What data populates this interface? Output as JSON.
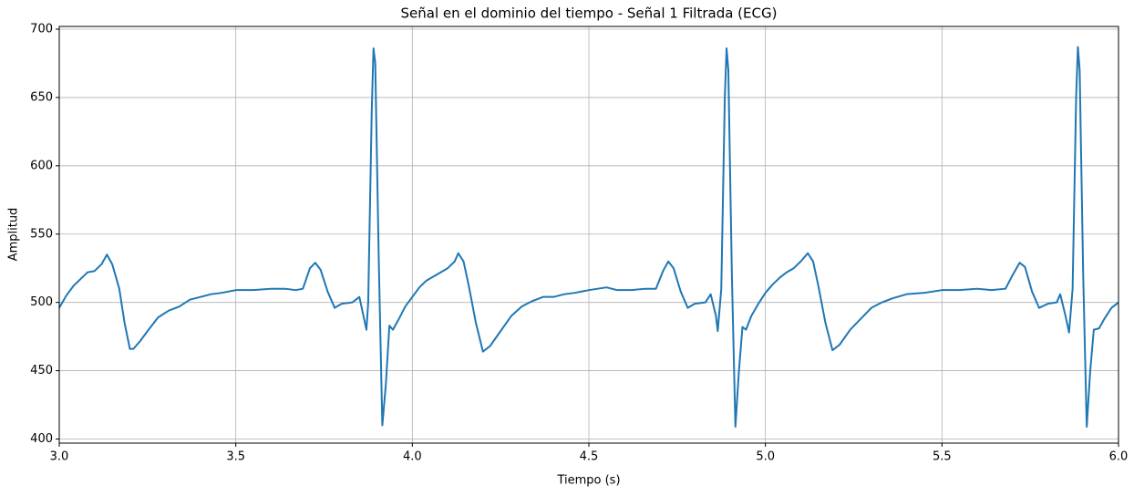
{
  "chart_data": {
    "type": "line",
    "title": "Señal en el dominio del tiempo - Señal 1 Filtrada (ECG)",
    "xlabel": "Tiempo (s)",
    "ylabel": "Amplitud",
    "xlim": [
      3,
      6
    ],
    "ylim": [
      397,
      702
    ],
    "xticks": [
      {
        "value": 3,
        "label": "3.0"
      },
      3.5,
      {
        "value": 4,
        "label": "4.0"
      },
      4.5,
      {
        "value": 5,
        "label": "5.0"
      },
      5.5,
      {
        "value": 6,
        "label": "6.0"
      }
    ],
    "yticks": [
      400,
      450,
      500,
      550,
      600,
      650,
      700
    ],
    "grid": true,
    "x": [
      3.0,
      3.02,
      3.04,
      3.06,
      3.08,
      3.1,
      3.12,
      3.135,
      3.15,
      3.17,
      3.185,
      3.2,
      3.21,
      3.23,
      3.25,
      3.28,
      3.31,
      3.34,
      3.37,
      3.4,
      3.43,
      3.46,
      3.5,
      3.55,
      3.6,
      3.64,
      3.67,
      3.69,
      3.71,
      3.725,
      3.74,
      3.76,
      3.78,
      3.8,
      3.83,
      3.85,
      3.86,
      3.87,
      3.875,
      3.885,
      3.89,
      3.895,
      3.905,
      3.915,
      3.925,
      3.935,
      3.945,
      3.96,
      3.98,
      4.0,
      4.02,
      4.04,
      4.06,
      4.08,
      4.1,
      4.12,
      4.13,
      4.145,
      4.16,
      4.18,
      4.2,
      4.22,
      4.25,
      4.28,
      4.31,
      4.34,
      4.37,
      4.4,
      4.43,
      4.46,
      4.5,
      4.55,
      4.58,
      4.62,
      4.66,
      4.69,
      4.71,
      4.725,
      4.74,
      4.76,
      4.78,
      4.8,
      4.83,
      4.845,
      4.86,
      4.865,
      4.875,
      4.885,
      4.89,
      4.895,
      4.905,
      4.915,
      4.925,
      4.935,
      4.945,
      4.96,
      4.98,
      5.0,
      5.02,
      5.04,
      5.06,
      5.08,
      5.1,
      5.12,
      5.135,
      5.15,
      5.17,
      5.19,
      5.21,
      5.24,
      5.27,
      5.3,
      5.33,
      5.36,
      5.4,
      5.45,
      5.5,
      5.55,
      5.6,
      5.64,
      5.68,
      5.7,
      5.72,
      5.735,
      5.755,
      5.775,
      5.8,
      5.825,
      5.835,
      5.85,
      5.86,
      5.87,
      5.88,
      5.885,
      5.89,
      5.9,
      5.91,
      5.92,
      5.93,
      5.945,
      5.96,
      5.98,
      6.0
    ],
    "series": [
      {
        "color": "#1f77b4",
        "values": [
          496,
          505,
          512,
          517,
          522,
          523,
          528,
          535,
          528,
          510,
          485,
          466,
          466,
          472,
          479,
          489,
          494,
          497,
          502,
          504,
          506,
          507,
          509,
          509,
          510,
          510,
          509,
          510,
          525,
          529,
          524,
          508,
          496,
          499,
          500,
          504,
          492,
          480,
          500,
          640,
          686,
          675,
          530,
          410,
          440,
          483,
          480,
          487,
          497,
          504,
          511,
          516,
          519,
          522,
          525,
          530,
          536,
          530,
          512,
          485,
          464,
          468,
          479,
          490,
          497,
          501,
          504,
          504,
          506,
          507,
          509,
          511,
          509,
          509,
          510,
          510,
          523,
          530,
          525,
          508,
          496,
          499,
          500,
          506,
          490,
          479,
          510,
          650,
          686,
          670,
          520,
          409,
          450,
          482,
          480,
          490,
          499,
          507,
          513,
          518,
          522,
          525,
          530,
          536,
          530,
          512,
          485,
          465,
          469,
          480,
          488,
          496,
          500,
          503,
          506,
          507,
          509,
          509,
          510,
          509,
          510,
          520,
          529,
          526,
          508,
          496,
          499,
          500,
          506,
          490,
          478,
          510,
          650,
          687,
          670,
          520,
          409,
          450,
          480,
          481,
          488,
          496,
          500
        ]
      }
    ]
  }
}
